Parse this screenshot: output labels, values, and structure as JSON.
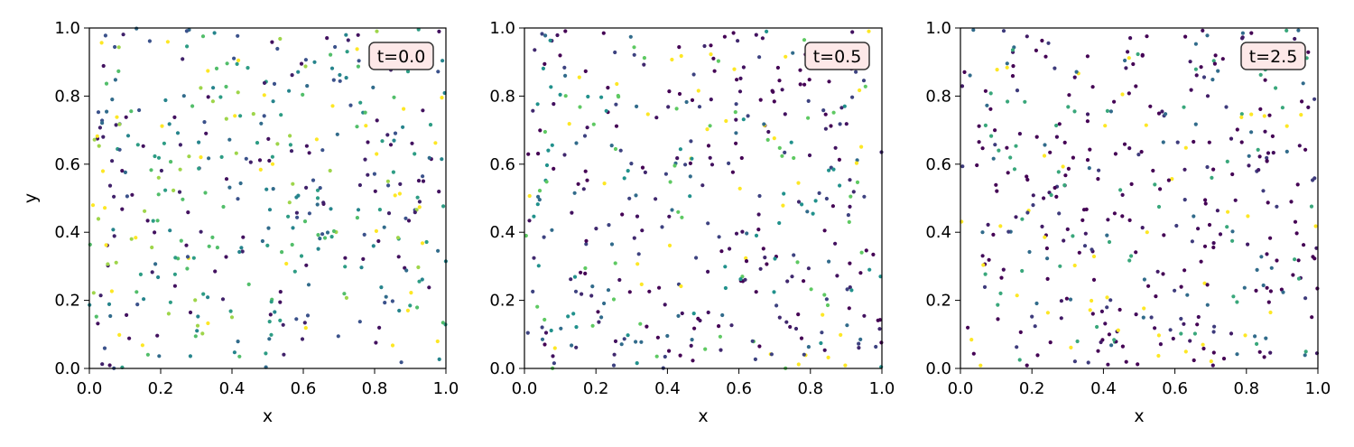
{
  "chart_data": [
    {
      "type": "scatter",
      "annotation": "t=0.0",
      "xlabel": "x",
      "ylabel": "y",
      "xlim": [
        0,
        1
      ],
      "ylim": [
        0,
        1
      ],
      "xticks": [
        "0.0",
        "0.2",
        "0.4",
        "0.6",
        "0.8",
        "1.0"
      ],
      "yticks": [
        "0.0",
        "0.2",
        "0.4",
        "0.6",
        "0.8",
        "1.0"
      ],
      "colormap": "viridis",
      "colormap_levels": [
        0.25,
        0.35,
        0.45,
        0.55,
        0.7,
        0.85,
        1.0,
        0.1,
        0.05
      ],
      "point_count": 420,
      "seed": 11
    },
    {
      "type": "scatter",
      "annotation": "t=0.5",
      "xlabel": "x",
      "ylabel": "",
      "xlim": [
        0,
        1
      ],
      "ylim": [
        0,
        1
      ],
      "xticks": [
        "0.0",
        "0.2",
        "0.4",
        "0.6",
        "0.8",
        "1.0"
      ],
      "yticks": [
        "0.0",
        "0.2",
        "0.4",
        "0.6",
        "0.8",
        "1.0"
      ],
      "colormap": "viridis",
      "colormap_levels": [
        0.0,
        0.0,
        0.05,
        0.12,
        0.2,
        0.35,
        0.5,
        0.75,
        1.0
      ],
      "point_count": 420,
      "seed": 23
    },
    {
      "type": "scatter",
      "annotation": "t=2.5",
      "xlabel": "x",
      "ylabel": "",
      "xlim": [
        0,
        1
      ],
      "ylim": [
        0,
        1
      ],
      "xticks": [
        "0.0",
        "0.2",
        "0.4",
        "0.6",
        "0.8",
        "1.0"
      ],
      "yticks": [
        "0.0",
        "0.2",
        "0.4",
        "0.6",
        "0.8",
        "1.0"
      ],
      "colormap": "viridis",
      "colormap_levels": [
        0.0,
        0.0,
        0.0,
        0.03,
        0.08,
        0.18,
        0.35,
        0.6,
        1.0
      ],
      "point_count": 420,
      "seed": 37
    }
  ],
  "colors": {
    "annotation_face": "#fde8e8",
    "annotation_edge": "#333333",
    "axes_edge": "#000000"
  }
}
